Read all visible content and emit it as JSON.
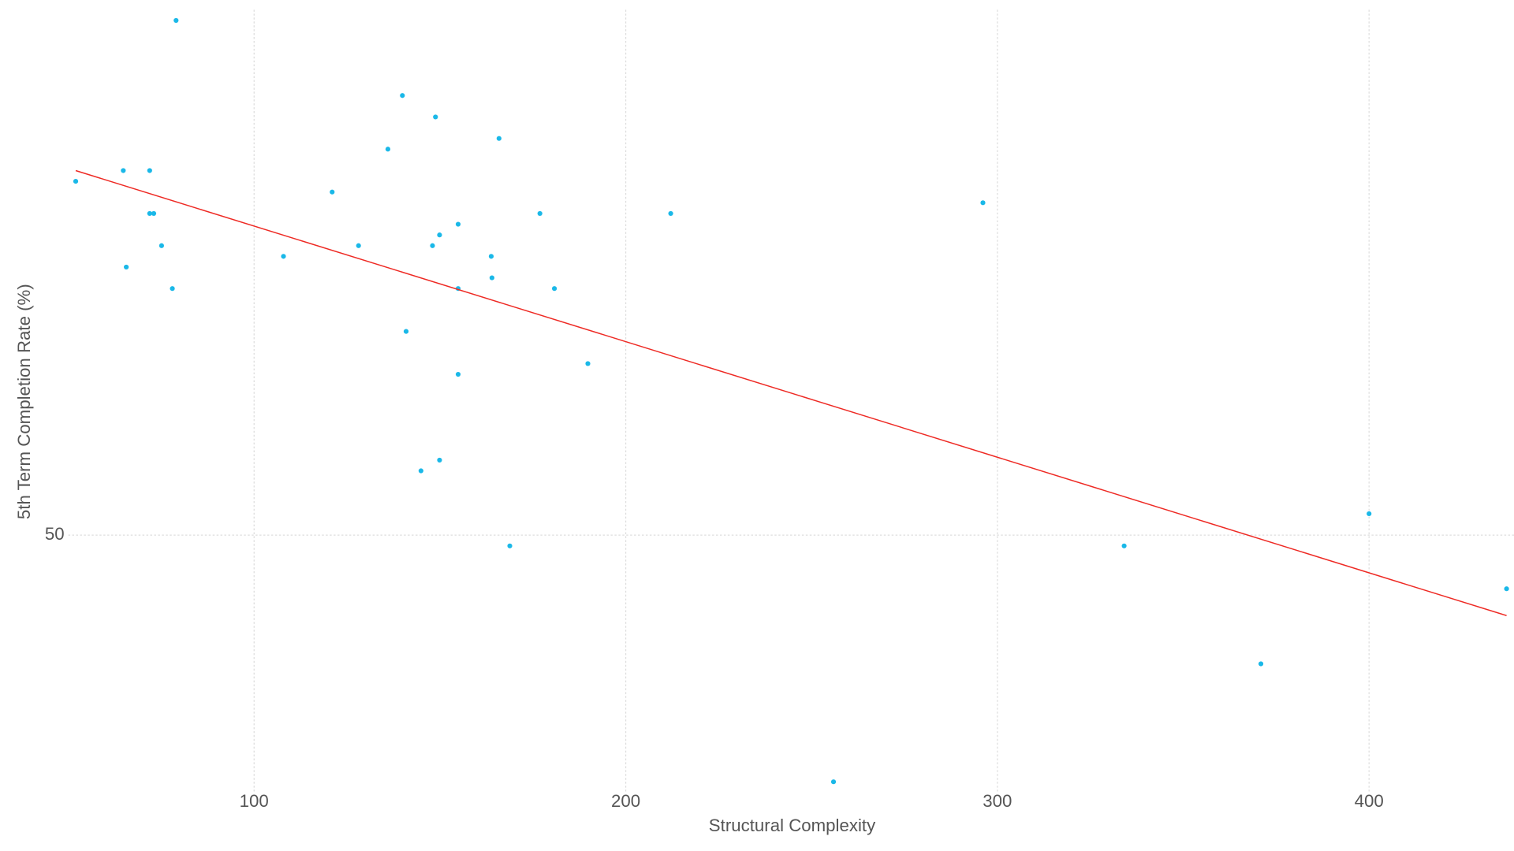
{
  "chart_data": {
    "type": "scatter",
    "x_label": "Structural Complexity",
    "y_label": "5th Term Completion Rate (%)",
    "xlim": [
      50,
      439
    ],
    "ylim": [
      26,
      99
    ],
    "xticks": [
      100,
      200,
      300,
      400
    ],
    "yticks": [
      50
    ],
    "grid": true,
    "series": [
      {
        "color": "#1ab8e8",
        "x": [
          52,
          64.8,
          65.6,
          71.9,
          71.9,
          73,
          75.1,
          78,
          79,
          107.9,
          121,
          128.1,
          136,
          139.9,
          140.9,
          144.9,
          148,
          148.8,
          149.9,
          149.9,
          154.9,
          154.9,
          154.9,
          163.8,
          164,
          165.9,
          168.8,
          176.9,
          180.8,
          189.8,
          212.1,
          255.9,
          296.1,
          334.1,
          370.9,
          400,
          437
        ],
        "values": [
          83,
          84,
          75,
          84,
          80,
          80,
          77,
          73,
          98,
          76,
          82,
          77,
          86,
          91,
          69,
          56,
          77,
          89,
          78,
          57,
          79,
          73,
          65,
          76,
          74,
          87,
          49,
          80,
          73,
          66,
          80,
          27,
          81,
          49,
          38,
          52,
          45
        ]
      }
    ],
    "trend": {
      "color": "#ee2a24",
      "x": [
        52,
        437
      ],
      "values": [
        84,
        42.5
      ]
    }
  }
}
